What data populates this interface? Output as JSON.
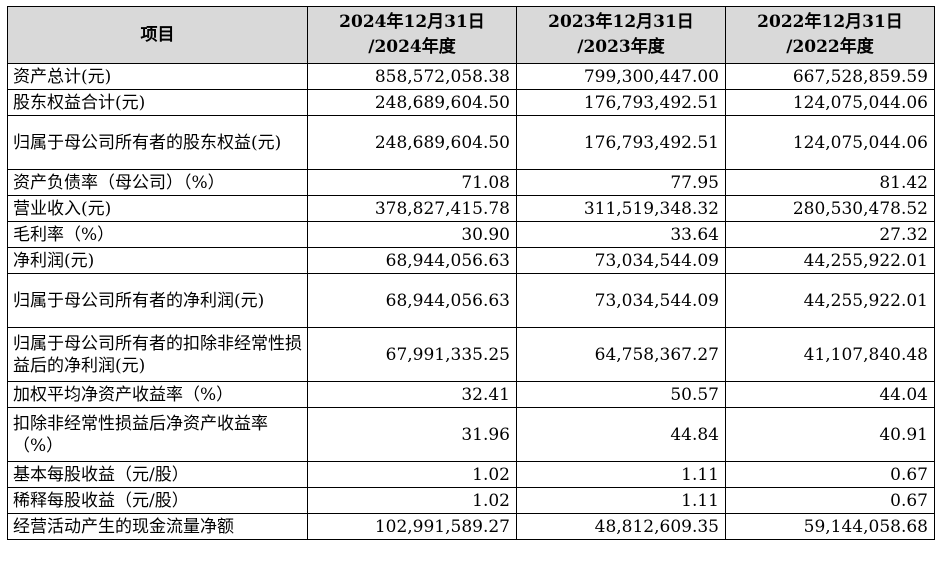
{
  "header": {
    "item": "项目",
    "col1_line1": "2024年12月31日",
    "col1_line2": "/2024年度",
    "col2_line1": "2023年12月31日",
    "col2_line2": "/2023年度",
    "col3_line1": "2022年12月31日",
    "col3_line2": "/2022年度"
  },
  "rows": [
    {
      "label": "资产总计(元)",
      "v2024": "858,572,058.38",
      "v2023": "799,300,447.00",
      "v2022": "667,528,859.59"
    },
    {
      "label": "股东权益合计(元)",
      "v2024": "248,689,604.50",
      "v2023": "176,793,492.51",
      "v2022": "124,075,044.06"
    },
    {
      "label": "归属于母公司所有者的股东权益(元)",
      "v2024": "248,689,604.50",
      "v2023": "176,793,492.51",
      "v2022": "124,075,044.06"
    },
    {
      "label": "资产负债率（母公司）（%）",
      "v2024": "71.08",
      "v2023": "77.95",
      "v2022": "81.42"
    },
    {
      "label": "营业收入(元)",
      "v2024": "378,827,415.78",
      "v2023": "311,519,348.32",
      "v2022": "280,530,478.52"
    },
    {
      "label": "毛利率（%）",
      "v2024": "30.90",
      "v2023": "33.64",
      "v2022": "27.32"
    },
    {
      "label": "净利润(元)",
      "v2024": "68,944,056.63",
      "v2023": "73,034,544.09",
      "v2022": "44,255,922.01"
    },
    {
      "label": "归属于母公司所有者的净利润(元)",
      "v2024": "68,944,056.63",
      "v2023": "73,034,544.09",
      "v2022": "44,255,922.01"
    },
    {
      "label": "归属于母公司所有者的扣除非经常性损益后的净利润(元)",
      "v2024": "67,991,335.25",
      "v2023": "64,758,367.27",
      "v2022": "41,107,840.48"
    },
    {
      "label": "加权平均净资产收益率（%）",
      "v2024": "32.41",
      "v2023": "50.57",
      "v2022": "44.04"
    },
    {
      "label": "扣除非经常性损益后净资产收益率（%）",
      "v2024": "31.96",
      "v2023": "44.84",
      "v2022": "40.91"
    },
    {
      "label": "基本每股收益（元/股）",
      "v2024": "1.02",
      "v2023": "1.11",
      "v2022": "0.67"
    },
    {
      "label": "稀释每股收益（元/股）",
      "v2024": "1.02",
      "v2023": "1.11",
      "v2022": "0.67"
    },
    {
      "label": "经营活动产生的现金流量净额",
      "v2024": "102,991,589.27",
      "v2023": "48,812,609.35",
      "v2022": "59,144,058.68"
    }
  ]
}
